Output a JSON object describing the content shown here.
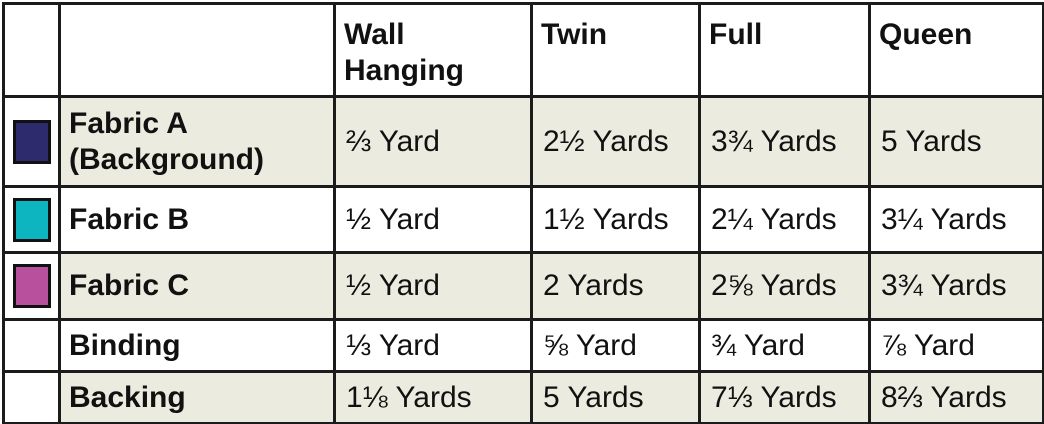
{
  "table": {
    "columns": [
      "Wall Hanging",
      "Twin",
      "Full",
      "Queen"
    ],
    "rows": [
      {
        "label": "Fabric A (Background)",
        "cells": [
          "⅔ Yard",
          "2½ Yards",
          "3¾ Yards",
          "5 Yards"
        ]
      },
      {
        "label": "Fabric B",
        "cells": [
          "½ Yard",
          "1½ Yards",
          "2¼ Yards",
          "3¼ Yards"
        ]
      },
      {
        "label": "Fabric C",
        "cells": [
          "½ Yard",
          "2 Yards",
          "2⅝ Yards",
          "3¾ Yards"
        ]
      },
      {
        "label": "Binding",
        "cells": [
          "⅓ Yard",
          "⅝ Yard",
          "¾ Yard",
          "⅞ Yard"
        ]
      },
      {
        "label": "Backing",
        "cells": [
          "1⅛ Yards",
          "5 Yards",
          "7⅓ Yards",
          "8⅔ Yards"
        ]
      }
    ]
  }
}
